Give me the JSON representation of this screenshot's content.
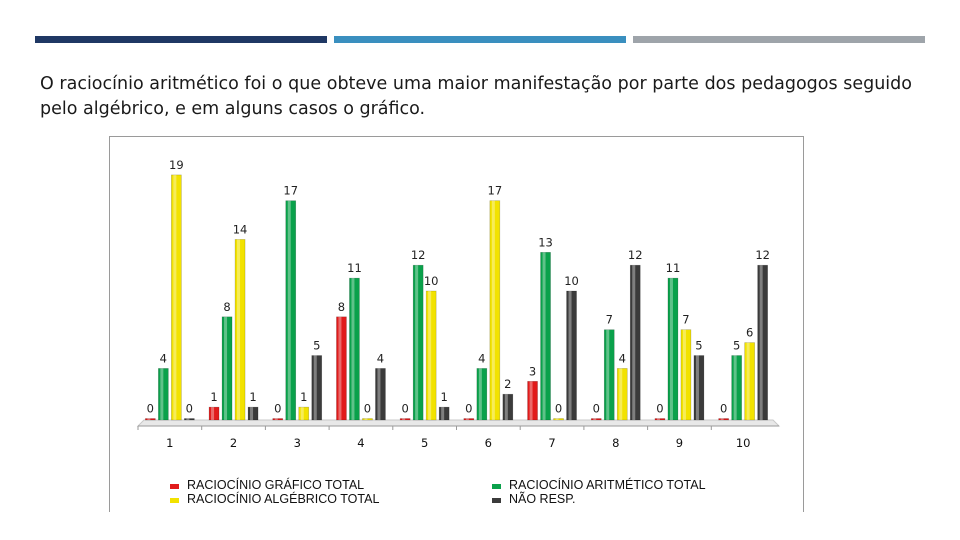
{
  "slide": {
    "accent_bars": [
      "#1f3864",
      "#3a8fbf",
      "#9ea4aa"
    ],
    "paragraph": "O raciocínio aritmético foi o que obteve uma maior manifestação por parte dos pedagogos  seguido pelo algébrico, e em alguns casos o gráfico."
  },
  "chart_data": {
    "type": "bar",
    "categories": [
      "1",
      "2",
      "3",
      "4",
      "5",
      "6",
      "7",
      "8",
      "9",
      "10"
    ],
    "ylim": [
      0,
      20
    ],
    "legend_position": "bottom",
    "series": [
      {
        "name": "RACIOCÍNIO GRÁFICO TOTAL",
        "color": "#e11b1b",
        "values": [
          0,
          1,
          0,
          8,
          0,
          0,
          3,
          0,
          0,
          0
        ]
      },
      {
        "name": "RACIOCÍNIO ARITMÉTICO TOTAL",
        "color": "#0aa14b",
        "values": [
          4,
          8,
          17,
          11,
          12,
          4,
          13,
          7,
          11,
          5
        ]
      },
      {
        "name": "RACIOCÍNIO ALGÉBRICO TOTAL",
        "color": "#f2e200",
        "values": [
          19,
          14,
          1,
          0,
          10,
          17,
          0,
          4,
          7,
          6
        ]
      },
      {
        "name": "NÃO RESP.",
        "color": "#3b3b3b",
        "values": [
          0,
          1,
          5,
          4,
          1,
          2,
          10,
          12,
          5,
          12
        ]
      }
    ]
  }
}
